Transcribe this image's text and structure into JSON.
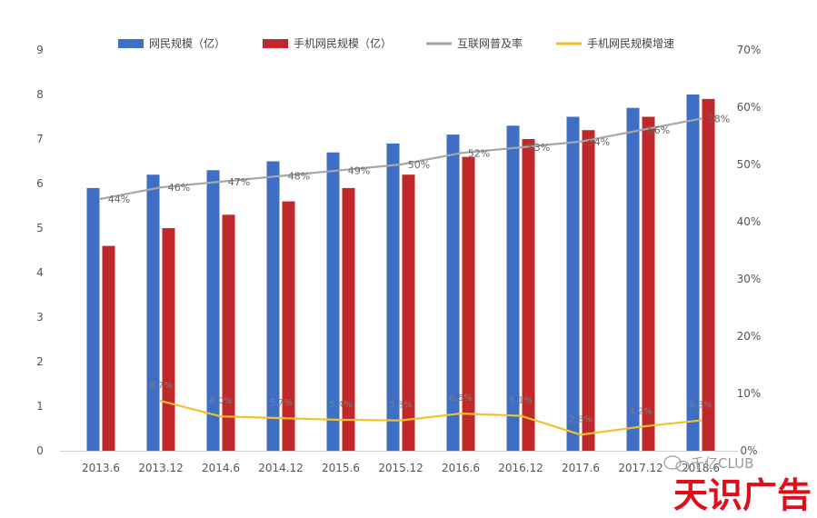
{
  "chart_data": {
    "type": "bar",
    "categories": [
      "2013.6",
      "2013.12",
      "2014.6",
      "2014.12",
      "2015.6",
      "2015.12",
      "2016.6",
      "2016.12",
      "2017.6",
      "2017.12",
      "2018.6"
    ],
    "series": [
      {
        "name": "网民规模（亿）",
        "kind": "bar",
        "axis": "left",
        "color": "#3e6fc5",
        "values": [
          5.9,
          6.2,
          6.3,
          6.5,
          6.7,
          6.9,
          7.1,
          7.3,
          7.5,
          7.7,
          8.0
        ]
      },
      {
        "name": "手机网民规模（亿）",
        "kind": "bar",
        "axis": "left",
        "color": "#c0282a",
        "values": [
          4.6,
          5.0,
          5.3,
          5.6,
          5.9,
          6.2,
          6.6,
          7.0,
          7.2,
          7.5,
          7.9
        ]
      },
      {
        "name": "互联网普及率",
        "kind": "line",
        "axis": "right",
        "color": "#a6a6a6",
        "values": [
          44,
          46,
          47,
          48,
          49,
          50,
          52,
          53,
          54,
          56,
          58
        ],
        "labels": [
          "44%",
          "46%",
          "47%",
          "48%",
          "49%",
          "50%",
          "52%",
          "53%",
          "54%",
          "56%",
          "58%"
        ]
      },
      {
        "name": "手机网民规模增速",
        "kind": "line",
        "axis": "right",
        "color": "#f2c02e",
        "values": [
          null,
          8.7,
          6.0,
          5.7,
          5.4,
          5.3,
          6.5,
          6.1,
          2.8,
          4.2,
          5.3
        ],
        "labels": [
          "",
          "8.7%",
          "6.0%",
          "5.7%",
          "5.4%",
          "5.3%",
          "6.5%",
          "6.1%",
          "2.8%",
          "4.2%",
          "5.3%"
        ]
      }
    ],
    "y_left": {
      "ylim": [
        0,
        9
      ],
      "ticks": [
        "0",
        "1",
        "2",
        "3",
        "4",
        "5",
        "6",
        "7",
        "8",
        "9"
      ]
    },
    "y_right": {
      "ylim": [
        0,
        70
      ],
      "ticks": [
        "0%",
        "10%",
        "20%",
        "30%",
        "40%",
        "50%",
        "60%",
        "70%"
      ]
    },
    "legend": "top",
    "grid": false
  },
  "watermark": {
    "brand_small": "千亿CLUB",
    "brand_big": "天识广告"
  }
}
